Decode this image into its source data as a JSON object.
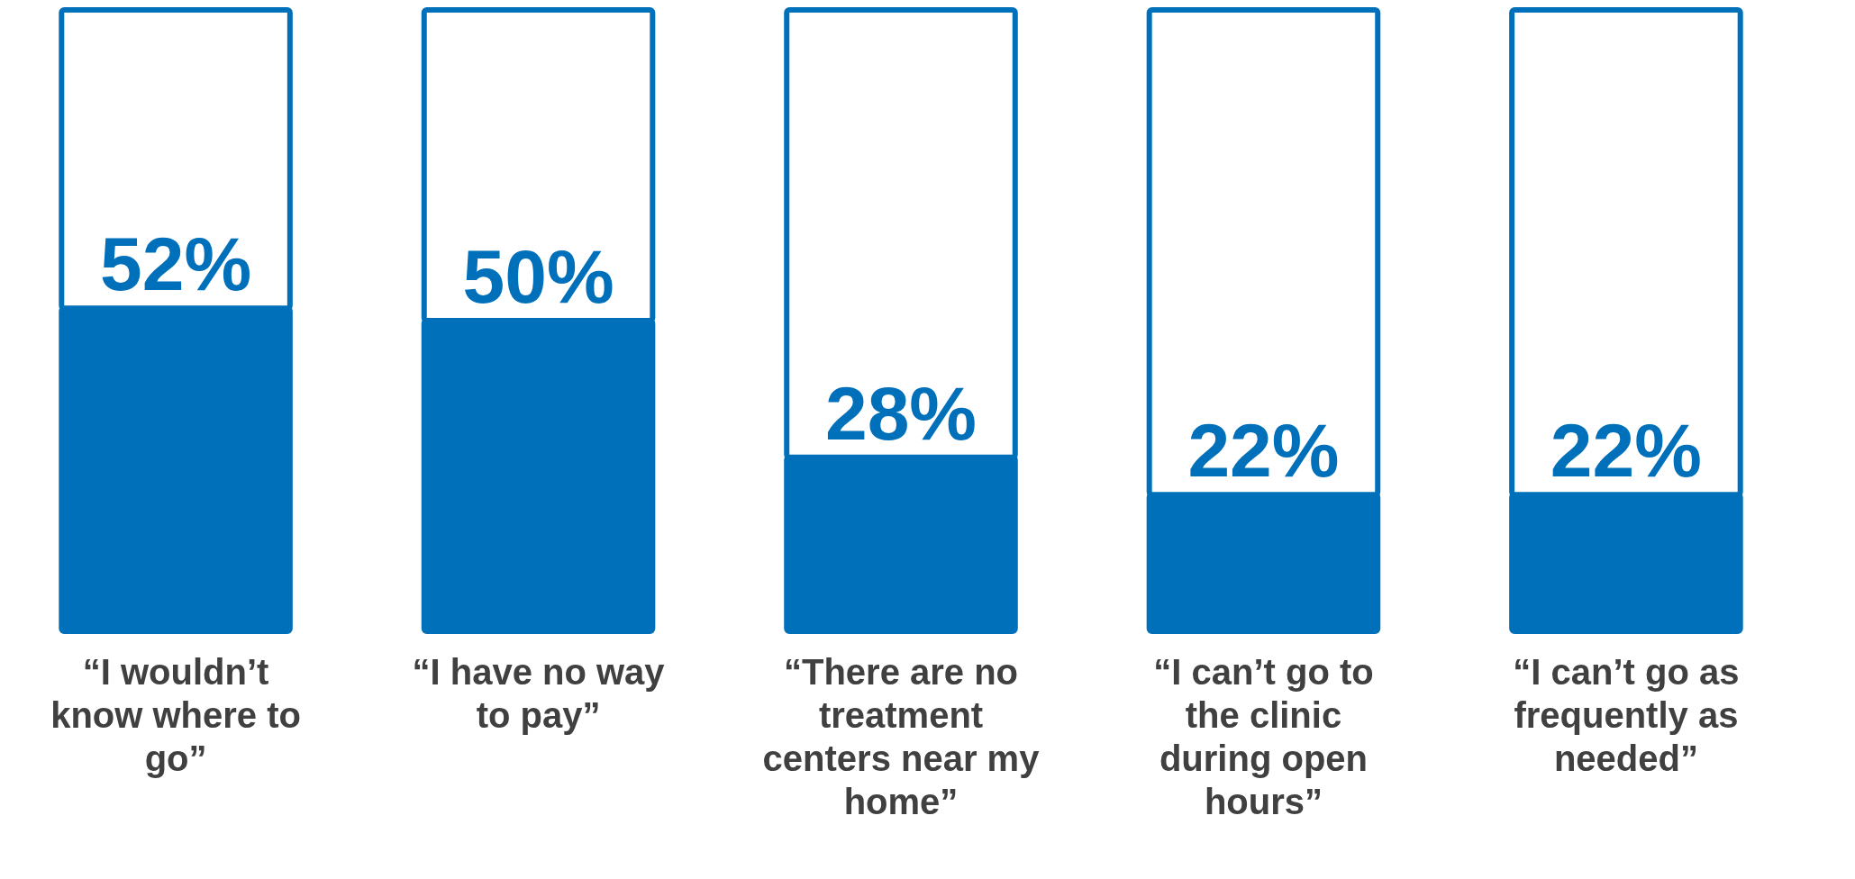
{
  "chart_data": {
    "type": "bar",
    "stacked": true,
    "categories": [
      "“I wouldn’t know where to go”",
      "“I have no way to pay”",
      "“There are no treatment centers near my home”",
      "“I can’t go to the clinic during open hours”",
      "“I can’t go as frequently as needed”"
    ],
    "series": [
      {
        "color": "#0070ba",
        "values": [
          52,
          50,
          28,
          22,
          22
        ],
        "value_labels": [
          "52%",
          "50%",
          "28%",
          "22%",
          "22%"
        ]
      },
      {
        "color": "#ffffff",
        "values": [
          48,
          50,
          72,
          78,
          78
        ]
      }
    ],
    "ylim": [
      0,
      100
    ]
  }
}
